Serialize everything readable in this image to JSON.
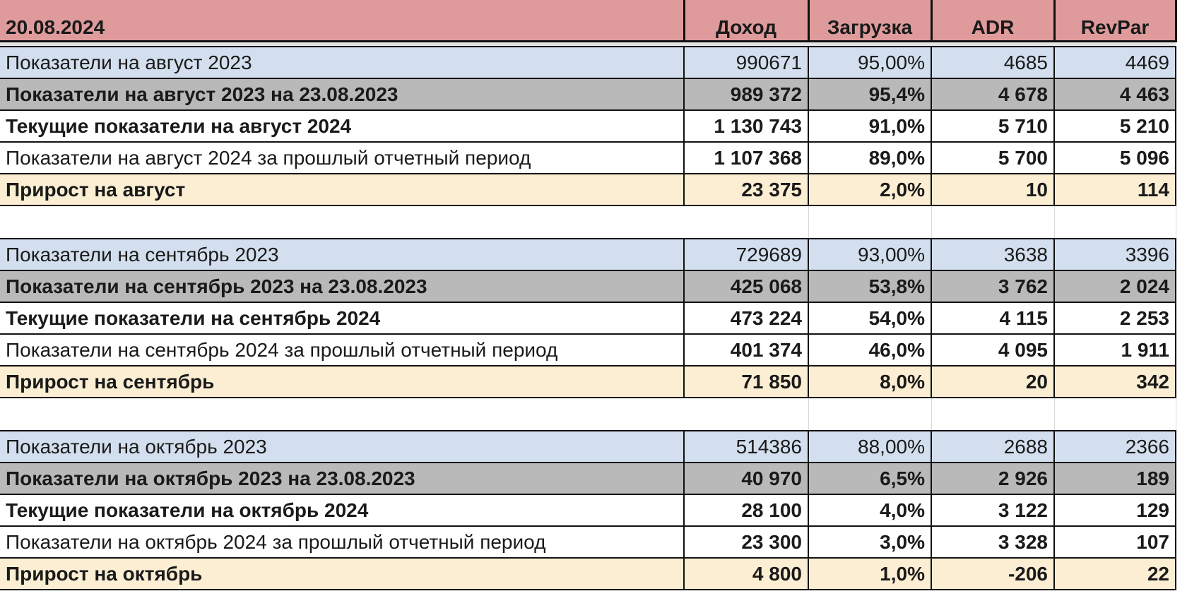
{
  "header": {
    "date": "20.08.2024",
    "columns": [
      "Доход",
      "Загрузка",
      "ADR",
      "RevPar"
    ]
  },
  "blocks": [
    {
      "rows": [
        {
          "kind": "base",
          "label": "Показатели на август 2023",
          "values": [
            "990671",
            "95,00%",
            "4685",
            "4469"
          ]
        },
        {
          "kind": "compare",
          "label": "Показатели на август 2023 на 23.08.2023",
          "values": [
            "989 372",
            "95,4%",
            "4 678",
            "4 463"
          ]
        },
        {
          "kind": "current",
          "label": "Текущие показатели на август 2024",
          "values": [
            "1 130 743",
            "91,0%",
            "5 710",
            "5 210"
          ]
        },
        {
          "kind": "prev",
          "label": "Показатели на август 2024 за прошлый отчетный период",
          "values": [
            "1 107 368",
            "89,0%",
            "5 700",
            "5 096"
          ]
        },
        {
          "kind": "growth",
          "label": "Прирост на август",
          "values": [
            "23 375",
            "2,0%",
            "10",
            "114"
          ]
        }
      ]
    },
    {
      "rows": [
        {
          "kind": "base",
          "label": "Показатели на сентябрь 2023",
          "values": [
            "729689",
            "93,00%",
            "3638",
            "3396"
          ]
        },
        {
          "kind": "compare",
          "label": "Показатели на сентябрь 2023 на 23.08.2023",
          "values": [
            "425 068",
            "53,8%",
            "3 762",
            "2 024"
          ]
        },
        {
          "kind": "current",
          "label": "Текущие показатели на сентябрь 2024",
          "values": [
            "473 224",
            "54,0%",
            "4 115",
            "2 253"
          ]
        },
        {
          "kind": "prev",
          "label": "Показатели на сентябрь 2024 за прошлый отчетный период",
          "values": [
            "401 374",
            "46,0%",
            "4 095",
            "1 911"
          ]
        },
        {
          "kind": "growth",
          "label": "Прирост на сентябрь",
          "values": [
            "71 850",
            "8,0%",
            "20",
            "342"
          ]
        }
      ]
    },
    {
      "rows": [
        {
          "kind": "base",
          "label": "Показатели на октябрь 2023",
          "values": [
            "514386",
            "88,00%",
            "2688",
            "2366"
          ]
        },
        {
          "kind": "compare",
          "label": "Показатели на октябрь 2023 на 23.08.2023",
          "values": [
            "40 970",
            "6,5%",
            "2 926",
            "189"
          ]
        },
        {
          "kind": "current",
          "label": "Текущие показатели на октябрь 2024",
          "values": [
            "28 100",
            "4,0%",
            "3 122",
            "129"
          ]
        },
        {
          "kind": "prev",
          "label": "Показатели на октябрь 2024 за прошлый отчетный период",
          "values": [
            "23 300",
            "3,0%",
            "3 328",
            "107"
          ]
        },
        {
          "kind": "growth",
          "label": "Прирост на октябрь",
          "values": [
            "4 800",
            "1,0%",
            "-206",
            "22"
          ]
        }
      ]
    }
  ]
}
